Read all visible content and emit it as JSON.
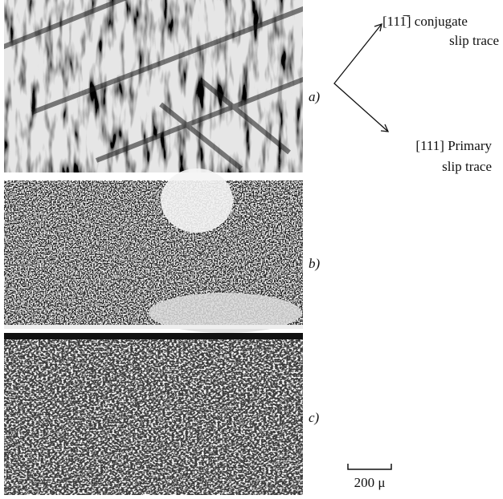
{
  "panels": [
    {
      "label": "a)"
    },
    {
      "label": "b)"
    },
    {
      "label": "c)"
    }
  ],
  "annotations": {
    "conjugate": {
      "line1": "[111̅]  conjugate",
      "line2": "slip  trace"
    },
    "primary": {
      "line1": "[111]  Primary",
      "line2": "slip  trace"
    }
  },
  "scale_bar": {
    "label": "200 μ"
  }
}
